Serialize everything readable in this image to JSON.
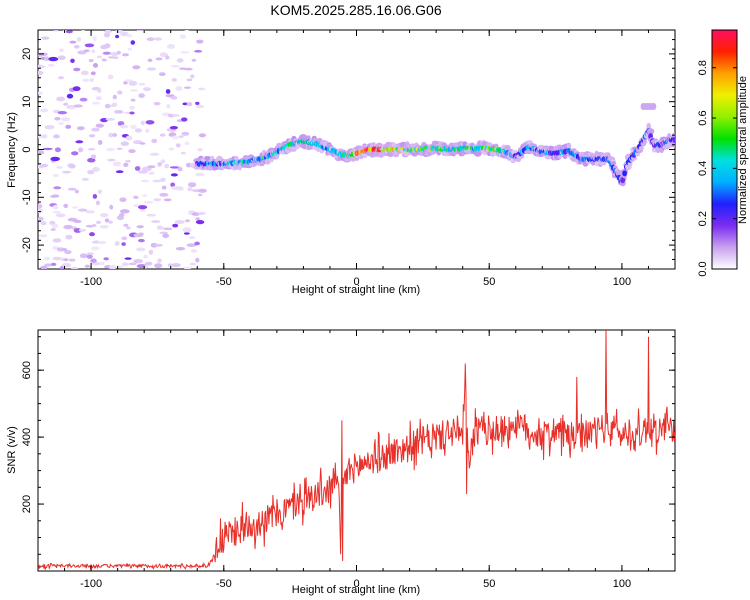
{
  "title": "KOM5.2025.285.16.06.G06",
  "colors": {
    "snr_line": "#e8302a",
    "axis": "#000000",
    "background": "#ffffff",
    "noise": "#c9a0f0"
  },
  "chart_data": [
    {
      "type": "heatmap",
      "name": "spectrogram",
      "xlabel": "Height of straight line (km)",
      "ylabel": "Frequency (Hz)",
      "xlim": [
        -120,
        120
      ],
      "ylim": [
        -25,
        25
      ],
      "x_ticks": [
        -100,
        -50,
        0,
        50,
        100
      ],
      "x_tick_labels": [
        "-100",
        "-50",
        "0",
        "50",
        "100"
      ],
      "y_ticks": [
        -20,
        -10,
        0,
        10,
        20
      ],
      "y_tick_labels": [
        "-20",
        "-10",
        "0",
        "10",
        "20"
      ],
      "colorbar": {
        "label": "Normalized spectral amplitude",
        "range": [
          0,
          0.95
        ],
        "ticks": [
          0.0,
          0.2,
          0.4,
          0.6,
          0.8
        ],
        "tick_labels": [
          "0.0",
          "0.2",
          "0.4",
          "0.6",
          "0.8"
        ],
        "gradient_stops": [
          "#ffffff",
          "#c9a0f0",
          "#7a2cf0",
          "#2020ff",
          "#00b0ff",
          "#00e0e0",
          "#00e000",
          "#90f000",
          "#f0f000",
          "#ffa000",
          "#ff2000",
          "#ff1060"
        ]
      },
      "ridge": {
        "heights_km": [
          -60,
          -55,
          -50,
          -45,
          -40,
          -35,
          -30,
          -25,
          -20,
          -15,
          -10,
          -5,
          0,
          5,
          10,
          15,
          20,
          25,
          30,
          35,
          40,
          45,
          50,
          55,
          60,
          65,
          70,
          75,
          80,
          85,
          90,
          95,
          98,
          100,
          102,
          104,
          106,
          108,
          110,
          112,
          115,
          118,
          120
        ],
        "frequency_hz": [
          -3,
          -3,
          -3,
          -2.8,
          -2.5,
          -1.8,
          -0.5,
          1,
          1.7,
          1.2,
          0,
          -1.2,
          -0.8,
          0,
          0,
          0,
          0,
          0.1,
          0.3,
          0,
          0.2,
          0.2,
          0.3,
          -0.3,
          -1.5,
          0.5,
          -0.5,
          -0.8,
          -0.3,
          -2,
          -2,
          -2,
          -5,
          -7,
          -3,
          -1.5,
          0,
          2,
          4,
          1,
          1,
          2,
          2
        ],
        "amplitude": [
          0.3,
          0.35,
          0.4,
          0.45,
          0.45,
          0.45,
          0.45,
          0.5,
          0.5,
          0.5,
          0.4,
          0.5,
          0.8,
          0.9,
          0.85,
          0.7,
          0.7,
          0.6,
          0.6,
          0.5,
          0.55,
          0.5,
          0.6,
          0.5,
          0.3,
          0.35,
          0.35,
          0.35,
          0.35,
          0.3,
          0.3,
          0.3,
          0.3,
          0.3,
          0.25,
          0.3,
          0.3,
          0.3,
          0.3,
          0.25,
          0.3,
          0.3,
          0.3
        ]
      },
      "noise_region_km": [
        -120,
        -58
      ],
      "high_band": {
        "heights_km": [
          108,
          112
        ],
        "frequency_hz": [
          8,
          10
        ]
      }
    },
    {
      "type": "line",
      "name": "snr",
      "xlabel": "Height of straight line (km)",
      "ylabel": "SNR (v/v)",
      "xlim": [
        -120,
        120
      ],
      "ylim": [
        0,
        720
      ],
      "x_ticks": [
        -100,
        -50,
        0,
        50,
        100
      ],
      "x_tick_labels": [
        "-100",
        "-50",
        "0",
        "50",
        "100"
      ],
      "y_ticks": [
        200,
        400,
        600
      ],
      "y_tick_labels": [
        "200",
        "400",
        "600"
      ],
      "envelope": {
        "x": [
          -120,
          -56,
          -54,
          -52,
          -50,
          -45,
          -40,
          -35,
          -30,
          -25,
          -20,
          -15,
          -10,
          -7,
          -6,
          -5,
          -4,
          -3,
          0,
          5,
          10,
          15,
          20,
          25,
          30,
          35,
          38,
          40,
          41,
          42,
          45,
          50,
          55,
          60,
          65,
          70,
          75,
          80,
          85,
          90,
          95,
          100,
          105,
          110,
          115,
          120
        ],
        "y": [
          15,
          15,
          40,
          80,
          100,
          120,
          140,
          150,
          170,
          190,
          210,
          230,
          240,
          300,
          60,
          260,
          280,
          300,
          310,
          330,
          340,
          360,
          370,
          390,
          400,
          410,
          420,
          400,
          560,
          330,
          420,
          420,
          420,
          440,
          420,
          400,
          420,
          400,
          400,
          420,
          430,
          410,
          400,
          430,
          420,
          430
        ]
      },
      "spikes": [
        {
          "x": -5.5,
          "y": 450
        },
        {
          "x": -5.2,
          "y": 30
        },
        {
          "x": 41,
          "y": 620
        },
        {
          "x": 41.5,
          "y": 230
        },
        {
          "x": 94,
          "y": 720
        },
        {
          "x": 110,
          "y": 700
        },
        {
          "x": 83,
          "y": 580
        }
      ],
      "noise_amplitude": 45
    }
  ]
}
